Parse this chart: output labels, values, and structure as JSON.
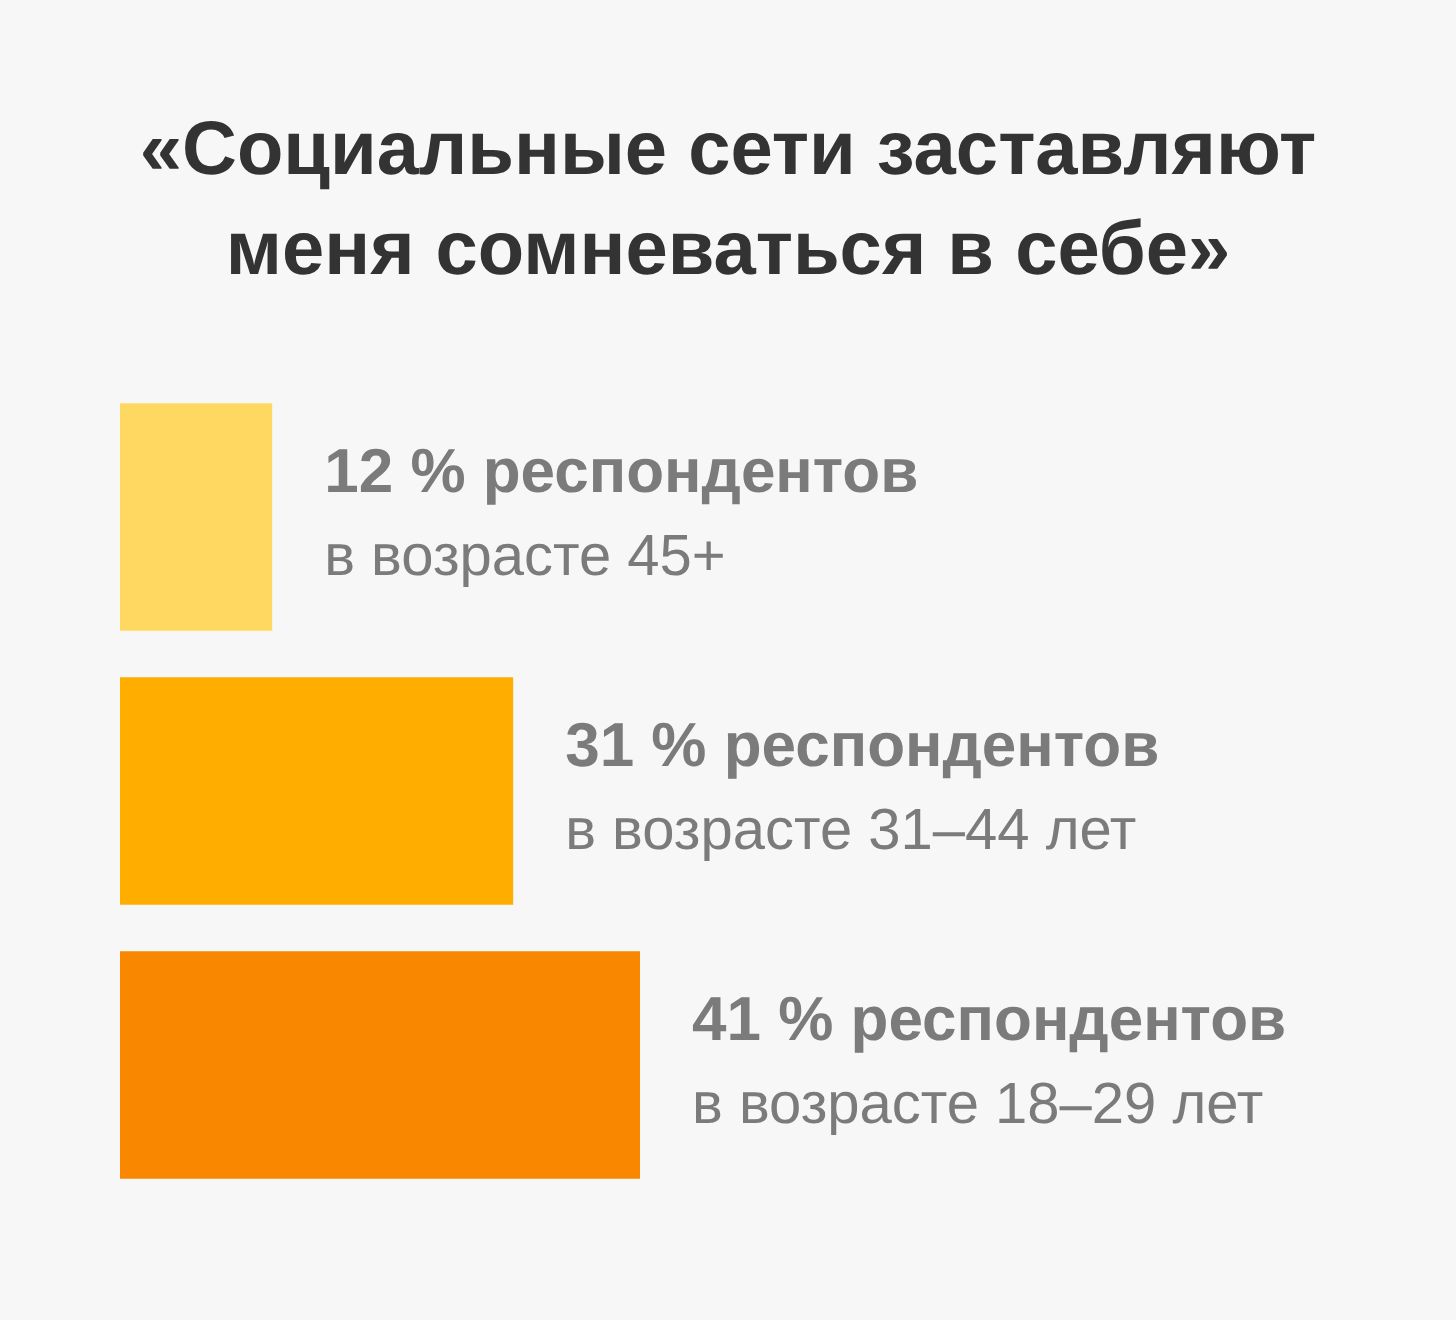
{
  "chart_data": {
    "type": "bar",
    "title": "«Социальные сети заставляют меня сомневаться в себе»",
    "orientation": "horizontal",
    "categories": [
      null,
      null,
      null
    ],
    "values": [
      12,
      31,
      41
    ],
    "colors": [
      "#ffd862",
      "#ffae00",
      "#f98800"
    ],
    "value_labels": [
      "12 % респондентов\nв возрасте 45+",
      "31 % респондентов\nв возрасте 31–44 лет",
      "41 % респондентов\nв возрасте 18–29 лет"
    ]
  }
}
